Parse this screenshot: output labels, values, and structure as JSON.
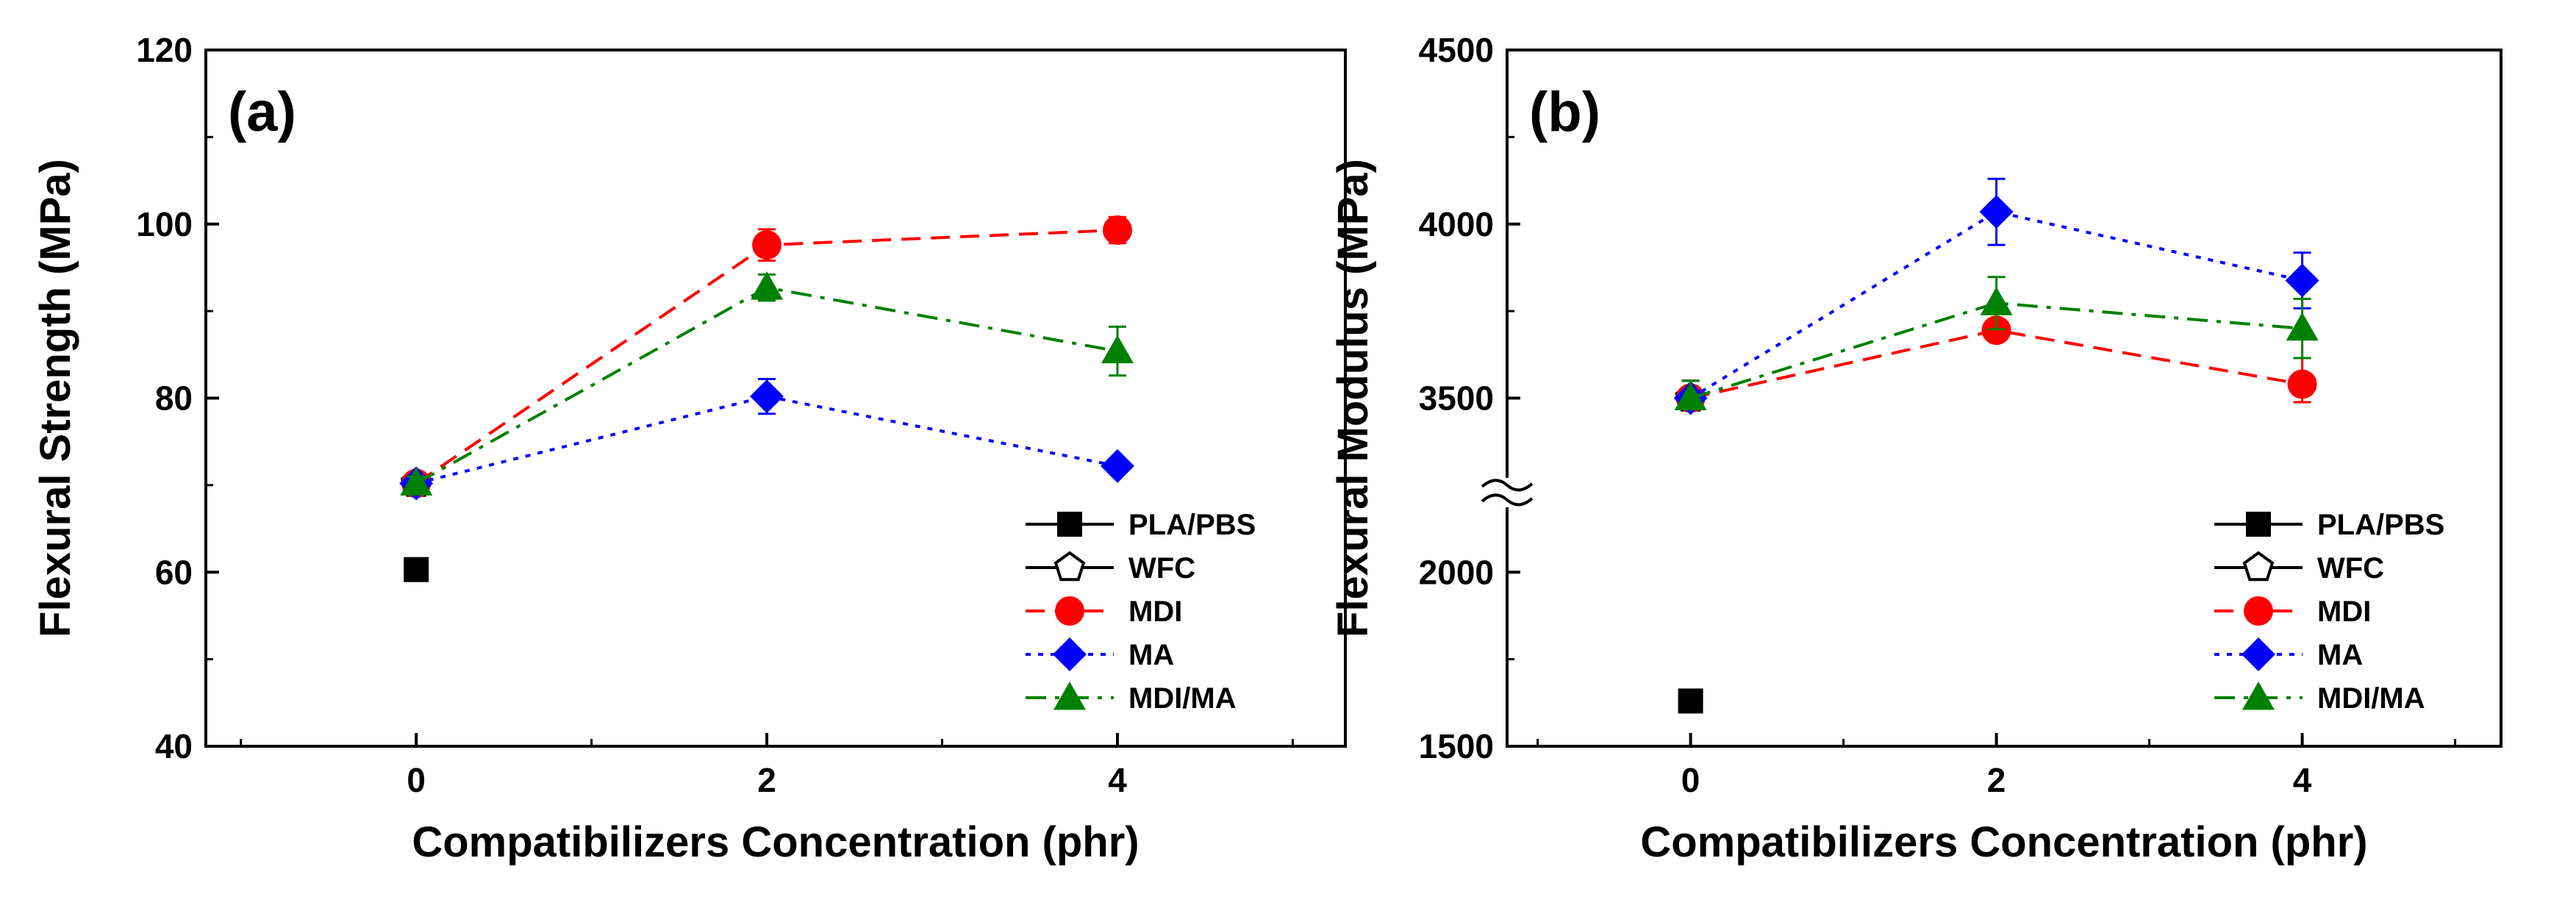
{
  "chart_data": [
    {
      "type": "line",
      "panel_label": "(a)",
      "xlabel": "Compatibilizers Concentration (phr)",
      "ylabel": "Flexural Strength (MPa)",
      "x_ticks": [
        0,
        2,
        4
      ],
      "y_ticks": [
        40,
        60,
        80,
        100,
        120
      ],
      "xlim": [
        -1.2,
        5.3
      ],
      "ylim": [
        40,
        120
      ],
      "y_break": null,
      "legend_position": "bottom-right",
      "series": [
        {
          "name": "PLA/PBS",
          "color": "#000000",
          "marker": "square",
          "dash": "solid",
          "x": [
            0
          ],
          "y": [
            60.3
          ],
          "err": [
            0
          ]
        },
        {
          "name": "WFC",
          "color": "#000000",
          "marker": "pentagon-open",
          "dash": "solid",
          "x": [
            0
          ],
          "y": [
            70.2
          ],
          "err": [
            0.8
          ]
        },
        {
          "name": "MDI",
          "color": "#ff0000",
          "marker": "circle",
          "dash": "dash",
          "x": [
            0,
            2,
            4
          ],
          "y": [
            70.2,
            97.6,
            99.3
          ],
          "err": [
            0.8,
            1.8,
            1.5
          ]
        },
        {
          "name": "MA",
          "color": "#0000ff",
          "marker": "diamond",
          "dash": "dot",
          "x": [
            0,
            2,
            4
          ],
          "y": [
            70.2,
            80.2,
            72.2
          ],
          "err": [
            0.8,
            2.0,
            0.7
          ]
        },
        {
          "name": "MDI/MA",
          "color": "#008000",
          "marker": "triangle",
          "dash": "dashdot",
          "x": [
            0,
            2,
            4
          ],
          "y": [
            70.2,
            92.7,
            85.4
          ],
          "err": [
            0.8,
            1.5,
            2.8
          ]
        }
      ]
    },
    {
      "type": "line",
      "panel_label": "(b)",
      "xlabel": "Compatibilizers Concentration (phr)",
      "ylabel": "Flexural Modulus (MPa)",
      "x_ticks": [
        0,
        2,
        4
      ],
      "y_ticks": [
        1500,
        2000,
        3500,
        4000,
        4500
      ],
      "xlim": [
        -1.2,
        5.3
      ],
      "ylim": [
        1500,
        4500
      ],
      "y_break": [
        2250,
        3250
      ],
      "legend_position": "bottom-right",
      "series": [
        {
          "name": "PLA/PBS",
          "color": "#000000",
          "marker": "square",
          "dash": "solid",
          "x": [
            0
          ],
          "y": [
            1630
          ],
          "err": [
            0
          ]
        },
        {
          "name": "WFC",
          "color": "#000000",
          "marker": "pentagon-open",
          "dash": "solid",
          "x": [
            0
          ],
          "y": [
            3500
          ],
          "err": [
            50
          ]
        },
        {
          "name": "MDI",
          "color": "#ff0000",
          "marker": "circle",
          "dash": "dash",
          "x": [
            0,
            2,
            4
          ],
          "y": [
            3500,
            3695,
            3540
          ],
          "err": [
            50,
            30,
            75
          ]
        },
        {
          "name": "MA",
          "color": "#0000ff",
          "marker": "diamond",
          "dash": "dot",
          "x": [
            0,
            2,
            4
          ],
          "y": [
            3500,
            4035,
            3838
          ],
          "err": [
            50,
            95,
            80
          ]
        },
        {
          "name": "MDI/MA",
          "color": "#008000",
          "marker": "triangle",
          "dash": "dashdot",
          "x": [
            0,
            2,
            4
          ],
          "y": [
            3500,
            3773,
            3700
          ],
          "err": [
            50,
            75,
            85
          ]
        }
      ]
    }
  ]
}
